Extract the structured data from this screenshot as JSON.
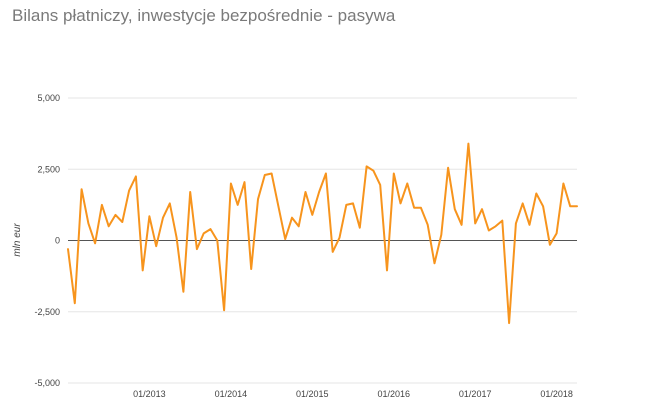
{
  "chart_data": {
    "type": "line",
    "title": "Bilans płatniczy, inwestycje bezpośrednie - pasywa",
    "xlabel": "",
    "ylabel": "mln eur",
    "ylim": [
      -5000,
      5000
    ],
    "yticks": [
      5000,
      2500,
      0,
      -2500,
      -5000
    ],
    "ytick_labels": [
      "5,000",
      "2,500",
      "0",
      "-2,500",
      "-5,000"
    ],
    "x_start": "2012-01",
    "x_end": "2018-04",
    "xtick_labels": [
      {
        "label": "01/2013",
        "date": "2013-01"
      },
      {
        "label": "01/2014",
        "date": "2014-01"
      },
      {
        "label": "01/2015",
        "date": "2015-01"
      },
      {
        "label": "01/2016",
        "date": "2016-01"
      },
      {
        "label": "01/2017",
        "date": "2017-01"
      },
      {
        "label": "01/2018",
        "date": "2018-01"
      }
    ],
    "grid": true,
    "legend": "none",
    "line_color": "#f7941d",
    "zero_line_color": "#555555",
    "grid_color": "#e6e6e6",
    "series": [
      {
        "x": [
          "2012-01",
          "2012-02",
          "2012-03",
          "2012-04",
          "2012-05",
          "2012-06",
          "2012-07",
          "2012-08",
          "2012-09",
          "2012-10",
          "2012-11",
          "2012-12",
          "2013-01",
          "2013-02",
          "2013-03",
          "2013-04",
          "2013-05",
          "2013-06",
          "2013-07",
          "2013-08",
          "2013-09",
          "2013-10",
          "2013-11",
          "2013-12",
          "2014-01",
          "2014-02",
          "2014-03",
          "2014-04",
          "2014-05",
          "2014-06",
          "2014-07",
          "2014-08",
          "2014-09",
          "2014-10",
          "2014-11",
          "2014-12",
          "2015-01",
          "2015-02",
          "2015-03",
          "2015-04",
          "2015-05",
          "2015-06",
          "2015-07",
          "2015-08",
          "2015-09",
          "2015-10",
          "2015-11",
          "2015-12",
          "2016-01",
          "2016-02",
          "2016-03",
          "2016-04",
          "2016-05",
          "2016-06",
          "2016-07",
          "2016-08",
          "2016-09",
          "2016-10",
          "2016-11",
          "2016-12",
          "2017-01",
          "2017-02",
          "2017-03",
          "2017-04",
          "2017-05",
          "2017-06",
          "2017-07",
          "2017-08",
          "2017-09",
          "2017-10",
          "2017-11",
          "2017-12",
          "2018-01",
          "2018-02",
          "2018-03",
          "2018-04"
        ],
        "values": [
          -300,
          -2200,
          1800,
          600,
          -100,
          1250,
          500,
          900,
          650,
          1750,
          2250,
          -1050,
          850,
          -200,
          800,
          1300,
          100,
          -1800,
          1700,
          -300,
          250,
          400,
          0,
          -2450,
          2000,
          1250,
          2050,
          -1000,
          1450,
          2300,
          2350,
          1200,
          50,
          800,
          500,
          1700,
          900,
          1700,
          2350,
          -400,
          100,
          1250,
          1300,
          450,
          2600,
          2450,
          1950,
          -1050,
          2350,
          1300,
          2000,
          1150,
          1150,
          550,
          -800,
          200,
          2550,
          1100,
          550,
          3400,
          600,
          1100,
          350,
          500,
          700,
          -2900,
          600,
          1300,
          550,
          1650,
          1200,
          -150,
          250,
          2000,
          1200,
          1200
        ]
      }
    ]
  }
}
